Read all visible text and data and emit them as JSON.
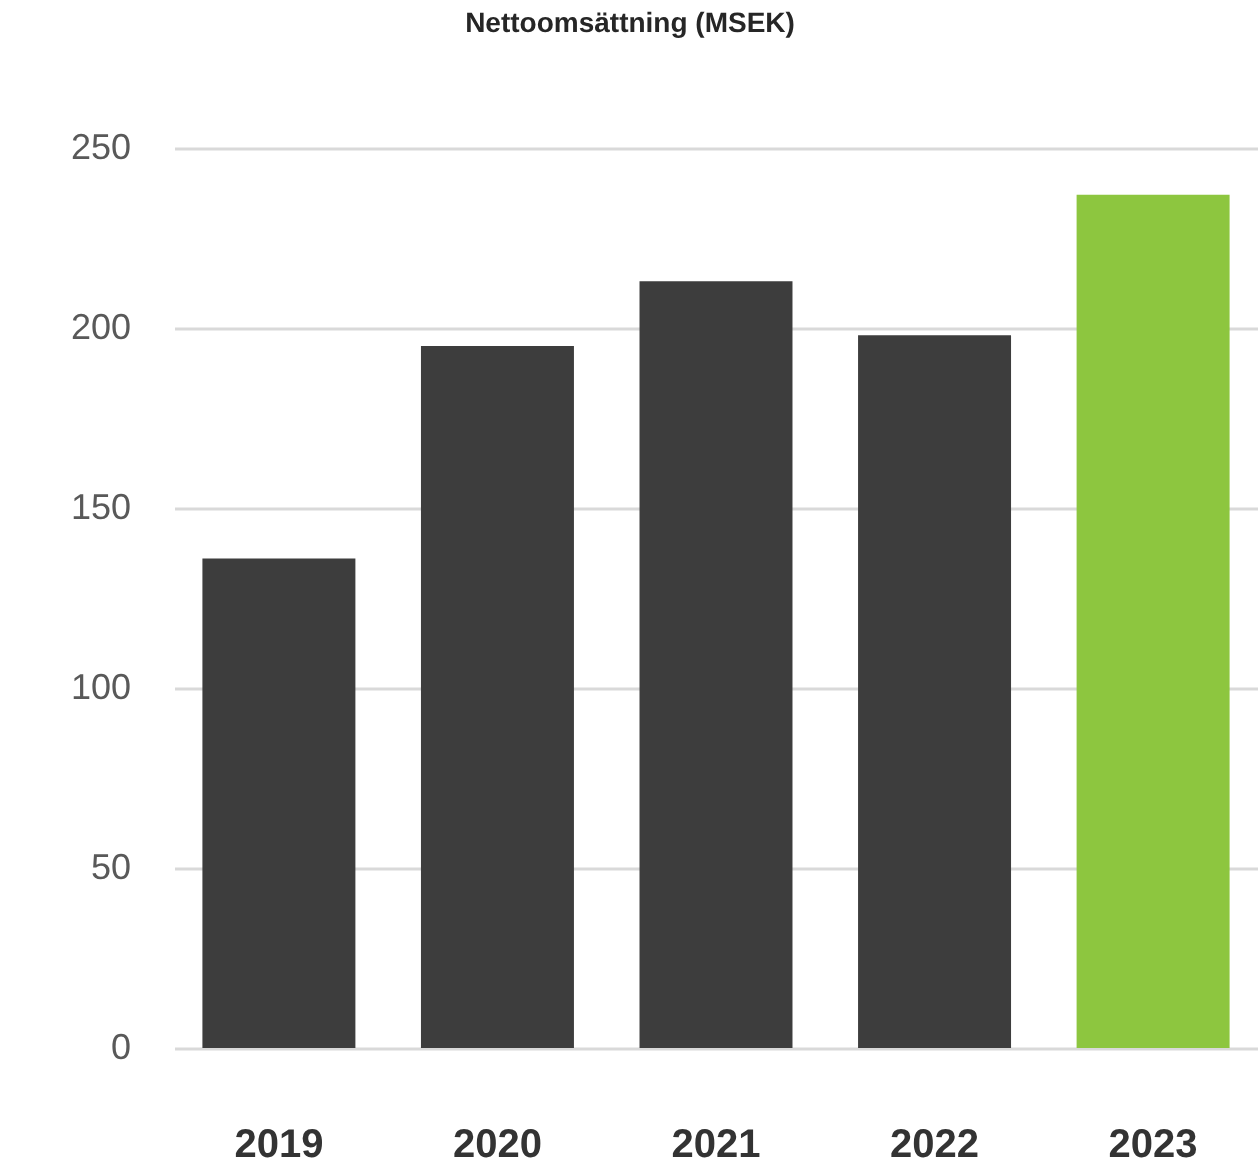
{
  "chart_data": {
    "type": "bar",
    "title": "Nettoomsättning (MSEK)",
    "categories": [
      "2019",
      "2020",
      "2021",
      "2022",
      "2023"
    ],
    "values": [
      136,
      195,
      213,
      198,
      237
    ],
    "colors": [
      "#3d3d3d",
      "#3d3d3d",
      "#3d3d3d",
      "#3d3d3d",
      "#8dc63f"
    ],
    "ylim": [
      0,
      250
    ],
    "yticks": [
      0,
      50,
      100,
      150,
      200,
      250
    ],
    "grid": "y"
  }
}
